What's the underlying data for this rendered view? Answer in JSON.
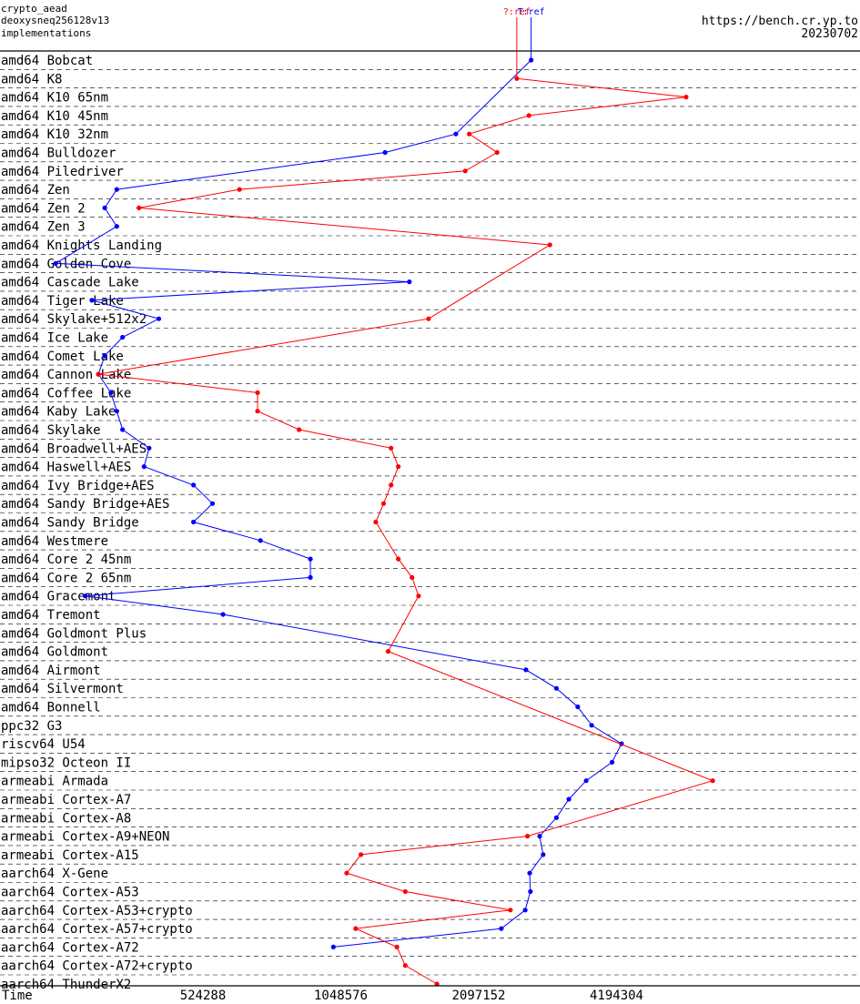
{
  "header": {
    "primitive": "crypto_aead",
    "implementation": "deoxysneq256128v13",
    "subtitle": "implementations",
    "site": "https://bench.cr.yp.to",
    "date": "20230702"
  },
  "chart_data": {
    "type": "line",
    "xlabel": "Time",
    "x_scale": "log2",
    "x_ticks": [
      524288,
      1048576,
      2097152,
      4194304
    ],
    "xlim": [
      200000,
      8500000
    ],
    "grid": "dashed horizontal separators between microarchitecture groups",
    "colors": {
      "tref": "#0000ff",
      "qref": "#ff0000"
    },
    "categories": [
      "amd64 Bobcat",
      "amd64 K8",
      "amd64 K10 65nm",
      "amd64 K10 45nm",
      "amd64 K10 32nm",
      "amd64 Bulldozer",
      "amd64 Piledriver",
      "amd64 Zen",
      "amd64 Zen 2",
      "amd64 Zen 3",
      "amd64 Knights Landing",
      "amd64 Golden Cove",
      "amd64 Cascade Lake",
      "amd64 Tiger Lake",
      "amd64 Skylake+512x2",
      "amd64 Ice Lake",
      "amd64 Comet Lake",
      "amd64 Cannon Lake",
      "amd64 Coffee Lake",
      "amd64 Kaby Lake",
      "amd64 Skylake",
      "amd64 Broadwell+AES",
      "amd64 Haswell+AES",
      "amd64 Ivy Bridge+AES",
      "amd64 Sandy Bridge+AES",
      "amd64 Sandy Bridge",
      "amd64 Westmere",
      "amd64 Core 2 45nm",
      "amd64 Core 2 65nm",
      "amd64 Gracemont",
      "amd64 Tremont",
      "amd64 Goldmont Plus",
      "amd64 Goldmont",
      "amd64 Airmont",
      "amd64 Silvermont",
      "amd64 Bonnell",
      "ppc32 G3",
      "riscv64 U54",
      "mipso32 Octeon II",
      "armeabi Armada",
      "armeabi Cortex-A7",
      "armeabi Cortex-A8",
      "armeabi Cortex-A9+NEON",
      "armeabi Cortex-A15",
      "aarch64 X-Gene",
      "aarch64 Cortex-A53",
      "aarch64 Cortex-A53+crypto",
      "aarch64 Cortex-A57+crypto",
      "aarch64 Cortex-A72",
      "aarch64 Cortex-A72+crypto",
      "aarch64 ThunderX2"
    ],
    "series": [
      {
        "name": "T:ref",
        "color": "#0000ff",
        "values": [
          2730000,
          null,
          null,
          null,
          1870000,
          1310000,
          null,
          340000,
          320000,
          340000,
          null,
          250000,
          1480000,
          300000,
          420000,
          350000,
          320000,
          310000,
          330000,
          340000,
          350000,
          400000,
          390000,
          500000,
          550000,
          500000,
          700000,
          900000,
          900000,
          290000,
          580000,
          null,
          null,
          2660000,
          3100000,
          3450000,
          3700000,
          4300000,
          4100000,
          3600000,
          3300000,
          3100000,
          2850000,
          2900000,
          2710000,
          2720000,
          2650000,
          2350000,
          1010000,
          null,
          null
        ]
      },
      {
        "name": "?:ref",
        "color": "#ff0000",
        "values": [
          null,
          2540000,
          5950000,
          2700000,
          2000000,
          2300000,
          1960000,
          630000,
          380000,
          null,
          3000000,
          null,
          null,
          null,
          1630000,
          null,
          null,
          310000,
          690000,
          690000,
          850000,
          1350000,
          1400000,
          1350000,
          1300000,
          1250000,
          null,
          1400000,
          1500000,
          1550000,
          null,
          null,
          1330000,
          null,
          null,
          null,
          null,
          null,
          null,
          6800000,
          null,
          null,
          2680000,
          1160000,
          1080000,
          1450000,
          2460000,
          1130000,
          1390000,
          1450000,
          1700000
        ]
      }
    ]
  }
}
